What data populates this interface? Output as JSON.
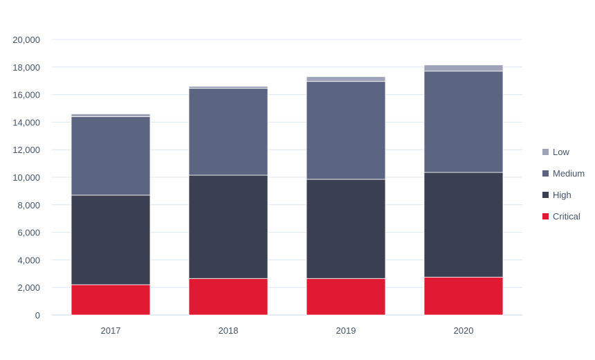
{
  "chart_data": {
    "type": "bar",
    "stacked": true,
    "categories": [
      "2017",
      "2018",
      "2019",
      "2020"
    ],
    "series": [
      {
        "name": "Critical",
        "color": "#e01a33",
        "values": [
          2200,
          2650,
          2650,
          2750
        ]
      },
      {
        "name": "High",
        "color": "#3b3f52",
        "values": [
          6500,
          7500,
          7200,
          7600
        ]
      },
      {
        "name": "Medium",
        "color": "#5b6480",
        "values": [
          5700,
          6300,
          7100,
          7350
        ]
      },
      {
        "name": "Low",
        "color": "#9ea3b8",
        "values": [
          200,
          150,
          350,
          450
        ]
      }
    ],
    "ylim": [
      0,
      20000
    ],
    "yticks": [
      0,
      2000,
      4000,
      6000,
      8000,
      10000,
      12000,
      14000,
      16000,
      18000,
      20000
    ],
    "ytick_labels": [
      "0",
      "2,000",
      "4,000",
      "6,000",
      "8,000",
      "10,000",
      "12,000",
      "14,000",
      "16,000",
      "18,000",
      "20,000"
    ],
    "grid": true,
    "legend_position": "right",
    "legend_order": [
      "Low",
      "Medium",
      "High",
      "Critical"
    ]
  }
}
